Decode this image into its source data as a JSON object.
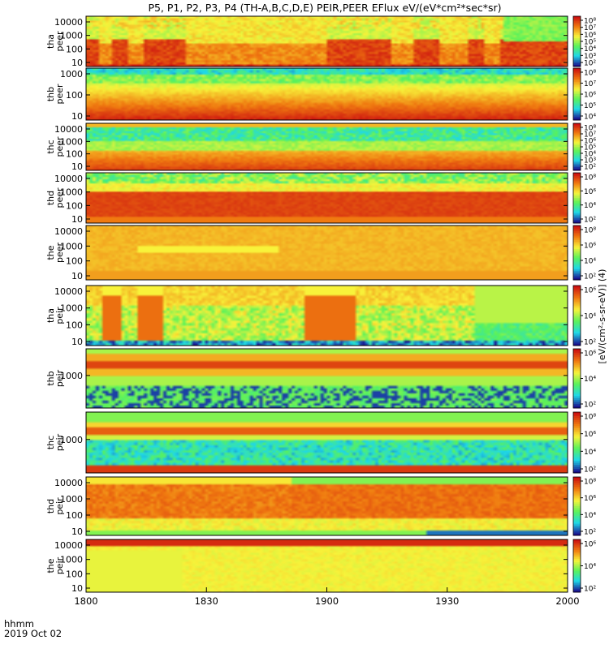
{
  "title": "P5, P1, P2, P3, P4 (TH-A,B,C,D,E) PEIR,PEER EFlux eV/(eV*cm²*sec*sr)",
  "colorbar_label": "[eV/(cm²-s-sr-eV)] (4)",
  "footer": {
    "unit_label": "hhmm",
    "date_label": "2019 Oct 02"
  },
  "chart_data": {
    "type": "heatmap",
    "x_axis": {
      "range": [
        "1800",
        "2000"
      ],
      "tick_labels": [
        "1800",
        "1830",
        "1900",
        "1930",
        "2000"
      ]
    },
    "colorscale": [
      "#1a0f8f",
      "#1fd8e8",
      "#5af25a",
      "#f8f33a",
      "#f07a10",
      "#cc1010"
    ],
    "panels": [
      {
        "id": "tha-peer",
        "probe": "tha",
        "instrument": "peer",
        "y_ticks": [
          "10",
          "100",
          "1000",
          "10000"
        ],
        "colorbar_ticks": [
          "10²",
          "10³",
          "10⁴",
          "10⁵",
          "10⁶",
          "10⁷",
          "10⁸"
        ]
      },
      {
        "id": "thb-peer",
        "probe": "thb",
        "instrument": "peer",
        "y_ticks": [
          "10",
          "100",
          "1000"
        ],
        "colorbar_ticks": [
          "10⁴",
          "10⁵",
          "10⁶",
          "10⁷",
          "10⁸"
        ]
      },
      {
        "id": "thc-peer",
        "probe": "thc",
        "instrument": "peer",
        "y_ticks": [
          "10",
          "100",
          "1000",
          "10000"
        ],
        "colorbar_ticks": [
          "10²",
          "10³",
          "10⁴",
          "10⁵",
          "10⁶",
          "10⁷",
          "10⁸"
        ]
      },
      {
        "id": "thd-peer",
        "probe": "thd",
        "instrument": "peer",
        "y_ticks": [
          "10",
          "100",
          "1000",
          "10000"
        ],
        "colorbar_ticks": [
          "10²",
          "10⁴",
          "10⁶",
          "10⁸"
        ]
      },
      {
        "id": "the-peer",
        "probe": "the",
        "instrument": "peer",
        "y_ticks": [
          "10",
          "100",
          "1000",
          "10000"
        ],
        "colorbar_ticks": [
          "10²",
          "10⁴",
          "10⁶",
          "10⁸"
        ]
      },
      {
        "id": "tha-peir",
        "probe": "tha",
        "instrument": "peir",
        "y_ticks": [
          "10",
          "100",
          "1000",
          "10000"
        ],
        "colorbar_ticks": [
          "10²",
          "10⁴",
          "10⁶"
        ]
      },
      {
        "id": "thb-peir",
        "probe": "thb",
        "instrument": "peir",
        "y_ticks": [
          "1000"
        ],
        "colorbar_ticks": [
          "10²",
          "10⁴",
          "10⁶"
        ]
      },
      {
        "id": "thc-peir",
        "probe": "thc",
        "instrument": "peir",
        "y_ticks": [
          "1000"
        ],
        "colorbar_ticks": [
          "10²",
          "10⁴",
          "10⁶",
          "10⁸"
        ]
      },
      {
        "id": "thd-peir",
        "probe": "thd",
        "instrument": "peir",
        "y_ticks": [
          "10",
          "100",
          "1000",
          "10000"
        ],
        "colorbar_ticks": [
          "10²",
          "10⁴",
          "10⁶",
          "10⁸"
        ]
      },
      {
        "id": "the-peir",
        "probe": "the",
        "instrument": "peir",
        "y_ticks": [
          "10",
          "100",
          "1000",
          "10000"
        ],
        "colorbar_ticks": [
          "10²",
          "10⁴",
          "10⁶"
        ]
      }
    ]
  }
}
